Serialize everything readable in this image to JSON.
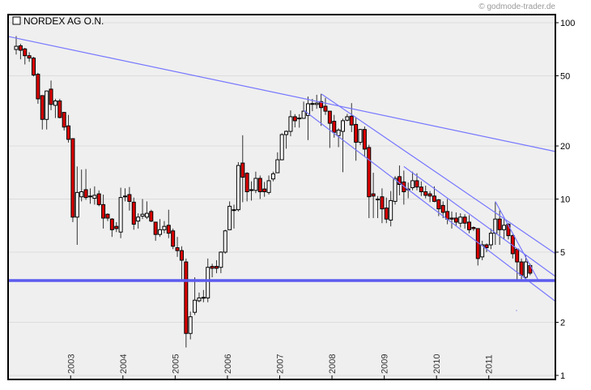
{
  "header": {
    "copyright": "© godmode-trader.de",
    "instrument": "NORDEX AG O.N."
  },
  "chart_data": {
    "type": "candlestick",
    "title": "NORDEX AG O.N.",
    "interval": "monthly",
    "start_month": "2001-12",
    "y_scale": "log",
    "ylim": [
      1,
      100
    ],
    "y_ticks": [
      "100",
      "50",
      "20",
      "10",
      "5",
      "2",
      "1"
    ],
    "y_tick_values": [
      100,
      50,
      20,
      10,
      5,
      2,
      1
    ],
    "x_ticks": [
      "2003",
      "2004",
      "2005",
      "2006",
      "2007",
      "2008",
      "2009",
      "2010",
      "2011"
    ],
    "grid": true,
    "colors": {
      "up": "#ffffff",
      "down": "#dd0000",
      "trendline": "#7777ff",
      "support": "#5b5bef",
      "grid": "#dcdcdc",
      "background": "#efefef"
    },
    "ohlc_fields": [
      "open",
      "high",
      "low",
      "close"
    ],
    "ohlc": [
      [
        70.5,
        84,
        66,
        73.5
      ],
      [
        74,
        76,
        62,
        69.8
      ],
      [
        71,
        72,
        58,
        65
      ],
      [
        65,
        68,
        60,
        63
      ],
      [
        63,
        64,
        49.6,
        50.5
      ],
      [
        51,
        52,
        34.7,
        37
      ],
      [
        38.6,
        38.6,
        24.8,
        28.3
      ],
      [
        28.3,
        41.2,
        24.8,
        41
      ],
      [
        42,
        47,
        31.9,
        34.4
      ],
      [
        34,
        37,
        28.8,
        36
      ],
      [
        36,
        37,
        28.7,
        29
      ],
      [
        31,
        31,
        24.5,
        25.6
      ],
      [
        26,
        30,
        20.9,
        21.8
      ],
      [
        22,
        22,
        7.4,
        7.9
      ],
      [
        7.9,
        15.3,
        5.5,
        10.9
      ],
      [
        10.3,
        14.7,
        9.7,
        11.0
      ],
      [
        11.3,
        14.8,
        9.9,
        10.2
      ],
      [
        10.4,
        11.5,
        9.4,
        10.3
      ],
      [
        10.1,
        11.8,
        9.3,
        10.5
      ],
      [
        10.7,
        11.2,
        9.1,
        9.3
      ],
      [
        9.3,
        10.6,
        6.8,
        7.8
      ],
      [
        8.2,
        8.3,
        7.5,
        7.8
      ],
      [
        7.7,
        7.8,
        6.1,
        6.7
      ],
      [
        7.0,
        7.4,
        6.5,
        6.8
      ],
      [
        6.5,
        11.6,
        6.0,
        10.2
      ],
      [
        10.4,
        11.5,
        9.7,
        10.4
      ],
      [
        10.6,
        11.7,
        8.6,
        9.7
      ],
      [
        9.6,
        10.2,
        6.7,
        7.2
      ],
      [
        7.5,
        8.3,
        6.8,
        7.9
      ],
      [
        8.0,
        10,
        7.7,
        8.2
      ],
      [
        7.9,
        9.7,
        7.7,
        8.3
      ],
      [
        8.5,
        8.7,
        7.4,
        7.5
      ],
      [
        7.4,
        7.4,
        5.8,
        6.3
      ],
      [
        6.3,
        7.7,
        6.1,
        6.7
      ],
      [
        6.7,
        7.5,
        6.4,
        7.0
      ],
      [
        7.1,
        8.7,
        6.0,
        6.4
      ],
      [
        6.6,
        6.8,
        5.2,
        5.4
      ],
      [
        5.3,
        6.1,
        4.7,
        5.1
      ],
      [
        5.1,
        5.4,
        3.5,
        4.5
      ],
      [
        4.4,
        4.6,
        1.44,
        1.73
      ],
      [
        1.73,
        2.3,
        1.6,
        2.15
      ],
      [
        2.28,
        3.6,
        2.2,
        2.67
      ],
      [
        2.65,
        2.95,
        2.6,
        2.75
      ],
      [
        2.75,
        3.05,
        2.6,
        2.77
      ],
      [
        2.75,
        4.6,
        2.6,
        4.1
      ],
      [
        4.15,
        4.3,
        3.6,
        4.05
      ],
      [
        4.15,
        4.5,
        3.8,
        4.05
      ],
      [
        4.1,
        5.05,
        3.8,
        5.0
      ],
      [
        5.0,
        6.7,
        4.9,
        6.6
      ],
      [
        6.7,
        9.7,
        6.7,
        9.1
      ],
      [
        8.7,
        9.3,
        6.8,
        8.7
      ],
      [
        8.7,
        16.2,
        8.5,
        15.5
      ],
      [
        16,
        23,
        9.6,
        13.3
      ],
      [
        14,
        14.2,
        9.7,
        11
      ],
      [
        11.3,
        12.6,
        9.8,
        11.3
      ],
      [
        11.2,
        14.3,
        10.8,
        13.1
      ],
      [
        13.1,
        13.6,
        10,
        11
      ],
      [
        11.4,
        12.5,
        10.3,
        11
      ],
      [
        10.9,
        13.6,
        10.6,
        12.7
      ],
      [
        13,
        14.3,
        12.6,
        13.9
      ],
      [
        14.1,
        18.4,
        14.1,
        16.7
      ],
      [
        16.7,
        23.6,
        16.6,
        23.2
      ],
      [
        23.2,
        24.5,
        19.3,
        24.2
      ],
      [
        24.2,
        31.8,
        22.7,
        29.3
      ],
      [
        29.3,
        30.3,
        25.5,
        27.8
      ],
      [
        28.6,
        30.3,
        25.4,
        28.8
      ],
      [
        28.7,
        35.7,
        28.5,
        31.5
      ],
      [
        29.8,
        38.1,
        21.6,
        34.7
      ],
      [
        34.6,
        37,
        31.5,
        34.8
      ],
      [
        34.4,
        39,
        32.5,
        35
      ],
      [
        35.7,
        39.5,
        26,
        33
      ],
      [
        33.6,
        37.5,
        30,
        31.5
      ],
      [
        31.5,
        31.6,
        19.5,
        26.9
      ],
      [
        27.6,
        30,
        22.3,
        23.9
      ],
      [
        22.9,
        25.2,
        19.7,
        24.6
      ],
      [
        24.2,
        28.6,
        14.2,
        27.8
      ],
      [
        28,
        30.4,
        27.6,
        29.3
      ],
      [
        29.5,
        35,
        24,
        26.3
      ],
      [
        26.5,
        29,
        16.5,
        21
      ],
      [
        21,
        25,
        20.3,
        24.8
      ],
      [
        24.8,
        25.8,
        17.4,
        19.2
      ],
      [
        19.6,
        20.3,
        7.8,
        10.3
      ],
      [
        10.7,
        14.1,
        7.8,
        10.4
      ],
      [
        10,
        10.4,
        7.8,
        10
      ],
      [
        10.3,
        11.5,
        7.3,
        8.8
      ],
      [
        8.9,
        10.2,
        7.3,
        7.7
      ],
      [
        7.6,
        11.1,
        7.0,
        9.8
      ],
      [
        9.7,
        13.5,
        9.3,
        13.1
      ],
      [
        13.4,
        15.5,
        10.5,
        12.1
      ],
      [
        12.5,
        14.5,
        9.3,
        11
      ],
      [
        11.4,
        12.4,
        10.1,
        11.3
      ],
      [
        11.6,
        14.3,
        11.2,
        12.7
      ],
      [
        12.7,
        14,
        11.2,
        11.7
      ],
      [
        11.7,
        12.6,
        10.4,
        11.0
      ],
      [
        11,
        11.9,
        10.1,
        10.5
      ],
      [
        10.7,
        11.1,
        9.6,
        10.4
      ],
      [
        10.4,
        11.8,
        9.6,
        9.7
      ],
      [
        9.9,
        10,
        8.0,
        8.8
      ],
      [
        9.2,
        9.7,
        7.8,
        8.4
      ],
      [
        8.5,
        10,
        7.2,
        7.7
      ],
      [
        7.8,
        8.5,
        6.8,
        7.7
      ],
      [
        7.8,
        8.4,
        7.0,
        7.4
      ],
      [
        7.3,
        8.3,
        6.9,
        7.9
      ],
      [
        7.9,
        8.2,
        6.8,
        7.3
      ],
      [
        7.4,
        8.1,
        6.4,
        6.7
      ],
      [
        6.9,
        7.0,
        6.6,
        6.8
      ],
      [
        6.8,
        6.8,
        4.2,
        4.6
      ],
      [
        4.7,
        5.8,
        4.5,
        5.5
      ],
      [
        5.5,
        5.6,
        5.0,
        5.3
      ],
      [
        5.5,
        6.8,
        5.2,
        6.4
      ],
      [
        6.4,
        9.6,
        5.5,
        7.7
      ],
      [
        7.7,
        8.6,
        5.5,
        6.7
      ],
      [
        6.7,
        7.7,
        5.9,
        7.1
      ],
      [
        7.2,
        7.3,
        5.9,
        6.2
      ],
      [
        6.2,
        6.3,
        4.6,
        4.9
      ],
      [
        5.2,
        5.2,
        3.5,
        4.4
      ],
      [
        4.4,
        4.6,
        3.4,
        3.7
      ],
      [
        3.6,
        4.8,
        3.4,
        4.4
      ],
      [
        4.2,
        4.3,
        3.7,
        3.8
      ]
    ],
    "trendlines": [
      {
        "name": "long-term-resistance",
        "from": {
          "month_index": -1.86,
          "price": 83.6
        },
        "to": {
          "month_index": 123.8,
          "price": 18.6
        }
      },
      {
        "name": "channel-upper",
        "from": {
          "month_index": 70.1,
          "price": 39.4
        },
        "to": {
          "month_index": 123.8,
          "price": 4.9
        }
      },
      {
        "name": "channel-lower",
        "from": {
          "month_index": 66.0,
          "price": 31.9
        },
        "to": {
          "month_index": 123.8,
          "price": 2.63
        }
      },
      {
        "name": "channel-middle",
        "from": {
          "month_index": 89.0,
          "price": 15.3
        },
        "to": {
          "month_index": 123.8,
          "price": 3.64
        }
      },
      {
        "name": "steep-downtrend",
        "from": {
          "month_index": 110.0,
          "price": 9.7
        },
        "to": {
          "month_index": 119.9,
          "price": 3.45
        }
      }
    ],
    "support_level": 3.45
  }
}
